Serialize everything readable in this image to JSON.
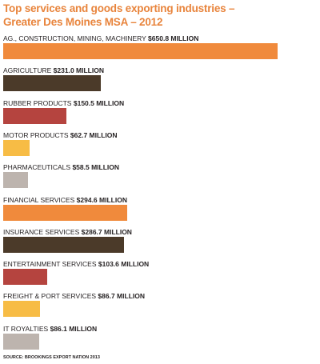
{
  "chart_data": {
    "type": "bar",
    "orientation": "horizontal",
    "title": "Top services and goods exporting industries – Greater Des Moines MSA – 2012",
    "categories": [
      "AG., CONSTRUCTION, MINING, MACHINERY",
      "AGRICULTURE",
      "RUBBER PRODUCTS",
      "MOTOR PRODUCTS",
      "PHARMACEUTICALS",
      "FINANCIAL SERVICES",
      "INSURANCE SERVICES",
      "ENTERTAINMENT SERVICES",
      "FREIGHT & PORT SERVICES",
      "IT ROYALTIES"
    ],
    "values": [
      650.8,
      231.0,
      150.5,
      62.7,
      58.5,
      294.6,
      286.7,
      103.6,
      86.7,
      86.1
    ],
    "value_labels": [
      "$650.8 MILLION",
      "$231.0 MILLION",
      "$150.5 MILLION",
      "$62.7 MILLION",
      "$58.5 MILLION",
      "$294.6 MILLION",
      "$286.7 MILLION",
      "$103.6 MILLION",
      "$86.7 MILLION",
      "$86.1 MILLION"
    ],
    "colors": [
      "#f08a3c",
      "#4b3a29",
      "#b5443f",
      "#f7bc45",
      "#bdb4ae",
      "#f08a3c",
      "#4b3a29",
      "#b5443f",
      "#f7bc45",
      "#bdb4ae"
    ],
    "source": "SOURCE: BROOKINGS EXPORT NATION 2013"
  }
}
